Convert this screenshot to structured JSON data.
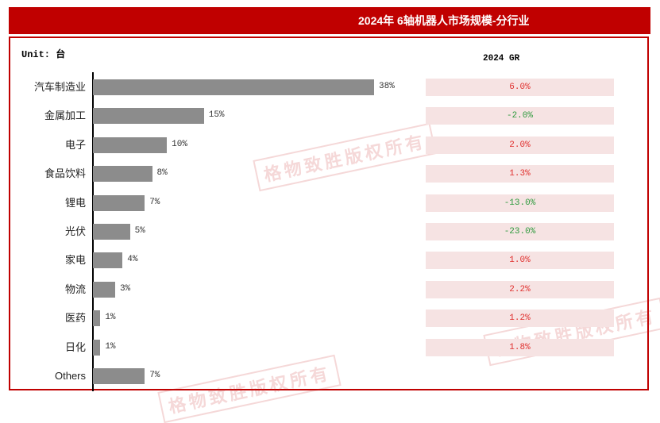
{
  "title": "2024年 6轴机器人市场规模-分行业",
  "unit_label": "Unit: 台",
  "gr_header": "2024 GR",
  "colors": {
    "title_bg": "#c00000",
    "bar": "#8c8c8c",
    "positive": "#e0312f",
    "negative": "#2e9a3d",
    "gr_bg": "#f6e3e3"
  },
  "watermark": "格物致胜版权所有",
  "chart_data": {
    "type": "bar",
    "orientation": "horizontal",
    "title": "2024年 6轴机器人市场规模-分行业",
    "unit": "台",
    "categories": [
      "汽车制造业",
      "金属加工",
      "电子",
      "食品饮料",
      "锂电",
      "光伏",
      "家电",
      "物流",
      "医药",
      "日化",
      "Others"
    ],
    "values": [
      38,
      15,
      10,
      8,
      7,
      5,
      4,
      3,
      1,
      1,
      7
    ],
    "value_labels": [
      "38%",
      "15%",
      "10%",
      "8%",
      "7%",
      "5%",
      "4%",
      "3%",
      "1%",
      "1%",
      "7%"
    ],
    "value_unit": "%",
    "gr_column": {
      "header": "2024 GR",
      "values": [
        6.0,
        -2.0,
        2.0,
        1.3,
        -13.0,
        -23.0,
        1.0,
        2.2,
        1.2,
        1.8,
        null
      ],
      "labels": [
        "6.0%",
        "-2.0%",
        "2.0%",
        "1.3%",
        "-13.0%",
        "-23.0%",
        "1.0%",
        "2.2%",
        "1.2%",
        "1.8%",
        null
      ]
    }
  }
}
